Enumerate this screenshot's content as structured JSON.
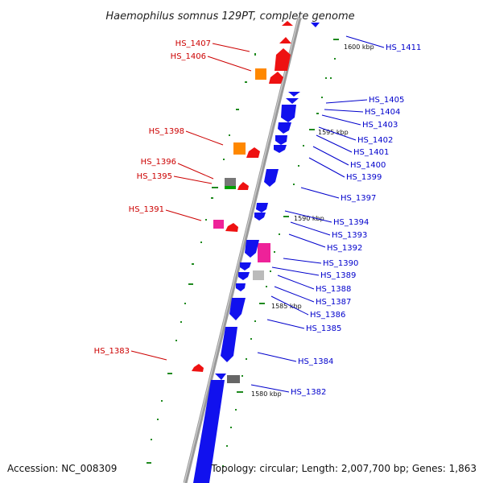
{
  "title": "Haemophilus somnus 129PT, complete genome",
  "accession": "Accession: NC_008309",
  "topology": "Topology: circular; Length: 2,007,700 bp; Genes: 1,863",
  "colors": {
    "forward_feature": "#ff0000",
    "reverse_feature": "#0000ff",
    "backbone": "#888888",
    "tick": "#008800",
    "left_label": "#cc0000",
    "right_label": "#0000cc"
  },
  "kbp_marks": [
    "1600 kbp",
    "1595 kbp",
    "1590 kbp",
    "1585 kbp",
    "1580 kbp"
  ],
  "left_labels": [
    "HS_1407",
    "HS_1406",
    "HS_1398",
    "HS_1396",
    "HS_1395",
    "HS_1391",
    "HS_1383"
  ],
  "right_labels": [
    "HS_1411",
    "HS_1405",
    "HS_1404",
    "HS_1403",
    "HS_1402",
    "HS_1401",
    "HS_1400",
    "HS_1399",
    "HS_1397",
    "HS_1394",
    "HS_1393",
    "HS_1392",
    "HS_1390",
    "HS_1389",
    "HS_1388",
    "HS_1387",
    "HS_1386",
    "HS_1385",
    "HS_1384",
    "HS_1382"
  ]
}
